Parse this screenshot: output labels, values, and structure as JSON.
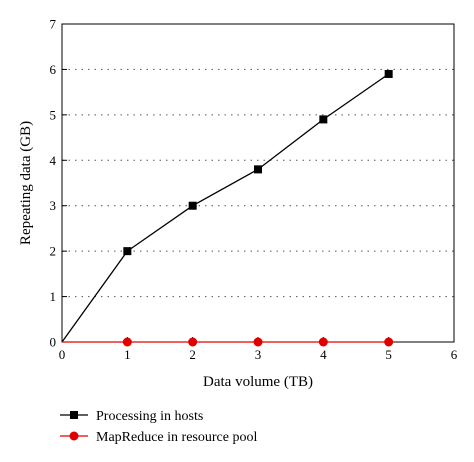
{
  "chart_data": {
    "type": "line",
    "title": "",
    "xlabel": "Data volume (TB)",
    "ylabel": "Repeating data (GB)",
    "xlim": [
      0,
      6
    ],
    "ylim": [
      0,
      7
    ],
    "xticks": [
      0,
      1,
      2,
      3,
      4,
      5,
      6
    ],
    "yticks": [
      0,
      1,
      2,
      3,
      4,
      5,
      6,
      7
    ],
    "grid": "horizontal-dotted",
    "legend_position": "bottom-left",
    "series": [
      {
        "name": "Processing in hosts",
        "color": "#000000",
        "marker": "square",
        "x": [
          0,
          1,
          2,
          3,
          4,
          5
        ],
        "y": [
          0,
          2,
          3,
          3.8,
          4.9,
          5.9
        ]
      },
      {
        "name": "MapReduce in resource pool",
        "color": "#e00000",
        "marker": "circle",
        "x": [
          0,
          1,
          2,
          3,
          4,
          5
        ],
        "y": [
          0,
          0,
          0,
          0,
          0,
          0
        ]
      }
    ]
  }
}
